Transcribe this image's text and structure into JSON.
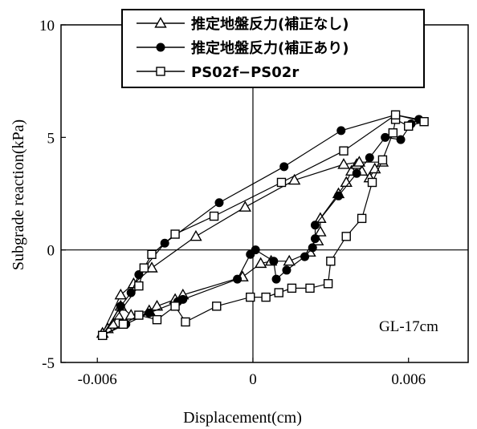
{
  "chart_data": {
    "type": "scatter",
    "xlabel": "Displacement(cm)",
    "ylabel": "Subgrade reaction(kPa)",
    "xlim": [
      -0.0074,
      0.0083
    ],
    "ylim": [
      -5,
      10
    ],
    "xticks": [
      "-0.006",
      "0",
      "0.006"
    ],
    "xtick_values": [
      -0.006,
      0,
      0.006
    ],
    "yticks": [
      "-5",
      "0",
      "5",
      "10"
    ],
    "ytick_values": [
      -5,
      0,
      5,
      10
    ],
    "annotation": "GL-17cm",
    "legend_position": "top",
    "series": [
      {
        "name": "推定地盤反力(補正なし)",
        "marker": "triangle",
        "points": [
          [
            -0.0058,
            -3.7
          ],
          [
            -0.0056,
            -3.5
          ],
          [
            -0.0054,
            -3.3
          ],
          [
            -0.0052,
            -2.9
          ],
          [
            -0.0051,
            -2.5
          ],
          [
            -0.0047,
            -2.9
          ],
          [
            -0.004,
            -2.7
          ],
          [
            -0.0037,
            -2.5
          ],
          [
            -0.003,
            -2.2
          ],
          [
            -0.0027,
            -2.0
          ],
          [
            -0.0004,
            -1.2
          ],
          [
            0.0003,
            -0.6
          ],
          [
            0.0007,
            -0.5
          ],
          [
            0.0014,
            -0.5
          ],
          [
            0.0022,
            -0.1
          ],
          [
            0.0025,
            0.4
          ],
          [
            0.0026,
            0.8
          ],
          [
            0.0026,
            1.4
          ],
          [
            0.0033,
            2.5
          ],
          [
            0.0036,
            3.0
          ],
          [
            0.0038,
            3.5
          ],
          [
            0.004,
            3.8
          ],
          [
            0.0042,
            3.5
          ],
          [
            0.0045,
            3.2
          ],
          [
            0.0047,
            3.6
          ],
          [
            0.005,
            3.9
          ],
          [
            0.0041,
            3.9
          ],
          [
            0.0035,
            3.8
          ],
          [
            0.0016,
            3.1
          ],
          [
            -0.0003,
            1.9
          ],
          [
            -0.0022,
            0.6
          ],
          [
            -0.0039,
            -0.8
          ],
          [
            -0.0046,
            -1.5
          ],
          [
            -0.0051,
            -2.0
          ],
          [
            -0.0058,
            -3.7
          ]
        ]
      },
      {
        "name": "推定地盤反力(補正あり)",
        "marker": "circle",
        "points": [
          [
            -0.0058,
            -3.8
          ],
          [
            -0.0049,
            -3.3
          ],
          [
            -0.004,
            -2.8
          ],
          [
            -0.0029,
            -2.3
          ],
          [
            -0.0027,
            -2.2
          ],
          [
            -0.0006,
            -1.3
          ],
          [
            -0.0001,
            -0.2
          ],
          [
            0.0001,
            0.0
          ],
          [
            0.0008,
            -0.5
          ],
          [
            0.0009,
            -1.3
          ],
          [
            0.0013,
            -0.9
          ],
          [
            0.002,
            -0.3
          ],
          [
            0.0023,
            0.1
          ],
          [
            0.0024,
            0.5
          ],
          [
            0.0024,
            1.1
          ],
          [
            0.0033,
            2.4
          ],
          [
            0.004,
            3.4
          ],
          [
            0.0045,
            4.1
          ],
          [
            0.0051,
            5.0
          ],
          [
            0.0057,
            4.9
          ],
          [
            0.0061,
            5.6
          ],
          [
            0.0064,
            5.8
          ],
          [
            0.0055,
            6.0
          ],
          [
            0.0034,
            5.3
          ],
          [
            0.0012,
            3.7
          ],
          [
            -0.0013,
            2.1
          ],
          [
            -0.0034,
            0.3
          ],
          [
            -0.0044,
            -1.1
          ],
          [
            -0.0047,
            -1.9
          ],
          [
            -0.0051,
            -2.5
          ],
          [
            -0.0058,
            -3.8
          ]
        ]
      },
      {
        "name": "PS02f−PS02r",
        "marker": "square",
        "points": [
          [
            -0.0058,
            -3.8
          ],
          [
            -0.005,
            -3.3
          ],
          [
            -0.0044,
            -2.9
          ],
          [
            -0.0037,
            -3.1
          ],
          [
            -0.003,
            -2.5
          ],
          [
            -0.0026,
            -3.2
          ],
          [
            -0.0014,
            -2.5
          ],
          [
            -0.0001,
            -2.1
          ],
          [
            0.0005,
            -2.1
          ],
          [
            0.001,
            -1.9
          ],
          [
            0.0015,
            -1.7
          ],
          [
            0.0022,
            -1.7
          ],
          [
            0.0029,
            -1.5
          ],
          [
            0.003,
            -0.5
          ],
          [
            0.0036,
            0.6
          ],
          [
            0.0042,
            1.4
          ],
          [
            0.0046,
            3.0
          ],
          [
            0.005,
            4.0
          ],
          [
            0.0054,
            5.2
          ],
          [
            0.0055,
            5.8
          ],
          [
            0.006,
            5.5
          ],
          [
            0.0066,
            5.7
          ],
          [
            0.0055,
            6.0
          ],
          [
            0.0035,
            4.4
          ],
          [
            0.0011,
            3.0
          ],
          [
            -0.0015,
            1.5
          ],
          [
            -0.003,
            0.7
          ],
          [
            -0.0039,
            -0.2
          ],
          [
            -0.0042,
            -0.8
          ],
          [
            -0.0044,
            -1.6
          ],
          [
            -0.0058,
            -3.8
          ]
        ]
      }
    ]
  }
}
